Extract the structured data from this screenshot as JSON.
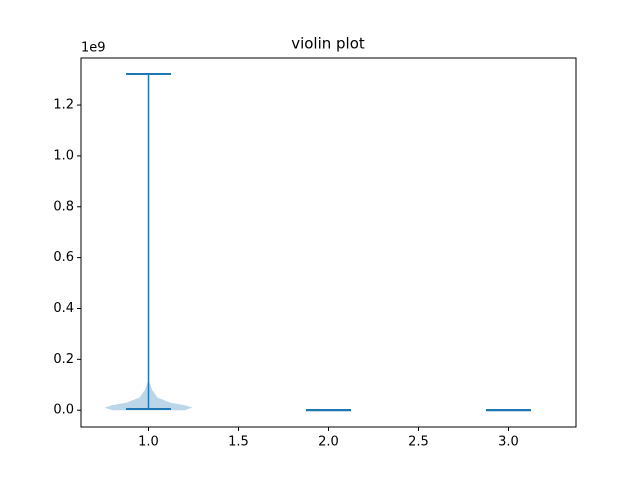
{
  "chart_data": {
    "type": "violin",
    "title": "violin plot",
    "y_offset_label": "1e9",
    "color": "#1f77b4",
    "body_alpha": 0.3,
    "violins": [
      {
        "position": 1,
        "min": 5000000,
        "max": 1322000000,
        "body": {
          "y": [
            0,
            10000000,
            20000000,
            30000000,
            50000000,
            80000000,
            120000000
          ],
          "half_width": [
            0.2,
            0.245,
            0.2,
            0.12,
            0.05,
            0.02,
            0
          ]
        }
      },
      {
        "position": 2,
        "min": 0,
        "max": 1000000
      },
      {
        "position": 3,
        "min": 0,
        "max": 1000000
      }
    ],
    "cap_half_width": 0.125,
    "xlim": [
      0.625,
      3.375
    ],
    "xticks": [
      {
        "value": 1,
        "label": "1.0"
      },
      1.5,
      {
        "value": 2,
        "label": "2.0"
      },
      2.5,
      {
        "value": 3,
        "label": "3.0"
      }
    ],
    "ylim": [
      -66000000,
      1385000000
    ],
    "yticks": [
      {
        "value": 0,
        "label": "0.0"
      },
      {
        "value": 200000000,
        "label": "0.2"
      },
      {
        "value": 400000000,
        "label": "0.4"
      },
      {
        "value": 600000000,
        "label": "0.6"
      },
      {
        "value": 800000000,
        "label": "0.8"
      },
      {
        "value": 1000000000,
        "label": "1.0"
      },
      {
        "value": 1200000000,
        "label": "1.2"
      }
    ]
  }
}
